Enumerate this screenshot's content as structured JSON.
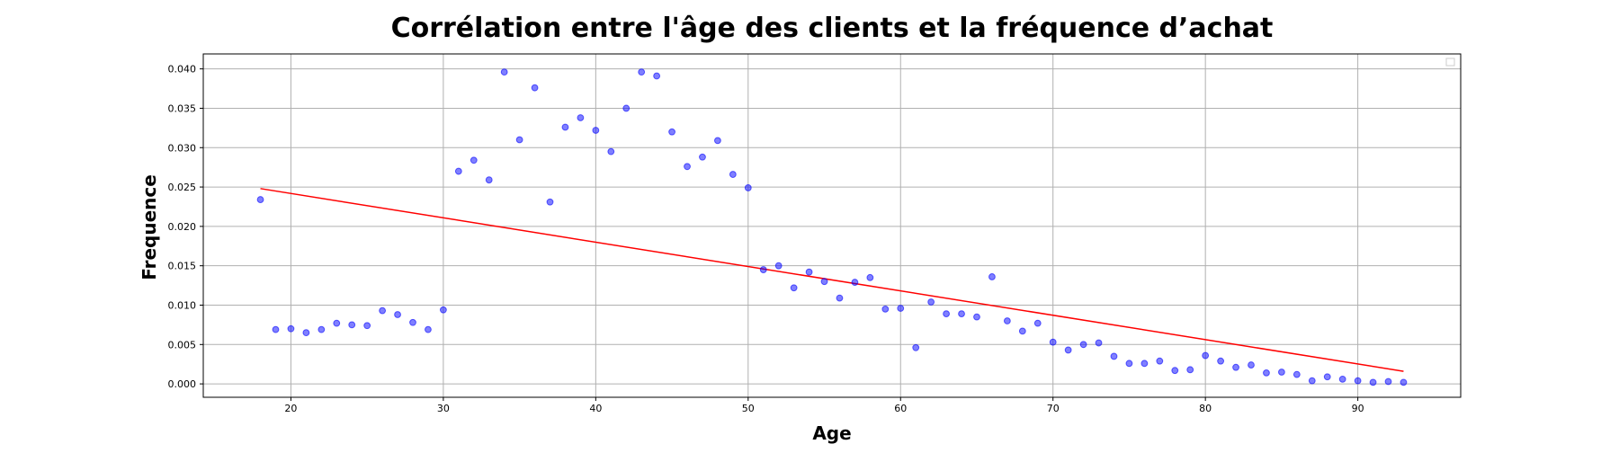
{
  "chart_data": {
    "type": "scatter",
    "title": "Corrélation entre l'âge des clients et la fréquence d’achat",
    "xlabel": "Age",
    "ylabel": "Frequence",
    "xlim": [
      14.25,
      96.75
    ],
    "ylim": [
      -0.0017,
      0.0419
    ],
    "xticks": [
      20,
      30,
      40,
      50,
      60,
      70,
      80,
      90
    ],
    "yticks": [
      0.0,
      0.005,
      0.01,
      0.015,
      0.02,
      0.025,
      0.03,
      0.035,
      0.04
    ],
    "ytick_labels": [
      "0.000",
      "0.005",
      "0.010",
      "0.015",
      "0.020",
      "0.025",
      "0.030",
      "0.035",
      "0.040"
    ],
    "grid": true,
    "legend": "top-right (empty)",
    "point_color": "#0000ff",
    "line_color": "#ff0000",
    "x": [
      18,
      19,
      20,
      21,
      22,
      23,
      24,
      25,
      26,
      27,
      28,
      29,
      30,
      31,
      32,
      33,
      34,
      35,
      36,
      37,
      38,
      39,
      40,
      41,
      42,
      43,
      44,
      45,
      46,
      47,
      48,
      49,
      50,
      51,
      52,
      53,
      54,
      55,
      56,
      57,
      58,
      59,
      60,
      61,
      62,
      63,
      64,
      65,
      66,
      67,
      68,
      69,
      70,
      71,
      72,
      73,
      74,
      75,
      76,
      77,
      78,
      79,
      80,
      81,
      82,
      83,
      84,
      85,
      86,
      87,
      88,
      89,
      90,
      91,
      92,
      93
    ],
    "y": [
      0.0234,
      0.0069,
      0.007,
      0.0065,
      0.0069,
      0.0077,
      0.0075,
      0.0074,
      0.0093,
      0.0088,
      0.0078,
      0.0069,
      0.0094,
      0.027,
      0.0284,
      0.0259,
      0.0396,
      0.031,
      0.0376,
      0.0231,
      0.0326,
      0.0338,
      0.0322,
      0.0295,
      0.035,
      0.0396,
      0.0391,
      0.032,
      0.0276,
      0.0288,
      0.0309,
      0.0266,
      0.0249,
      0.0145,
      0.015,
      0.0122,
      0.0142,
      0.013,
      0.0109,
      0.0129,
      0.0135,
      0.0095,
      0.0096,
      0.0046,
      0.0104,
      0.0089,
      0.0089,
      0.0085,
      0.0136,
      0.008,
      0.0067,
      0.0077,
      0.0053,
      0.0043,
      0.005,
      0.0052,
      0.0035,
      0.0026,
      0.0026,
      0.0029,
      0.0017,
      0.0018,
      0.0036,
      0.0029,
      0.0021,
      0.0024,
      0.0014,
      0.0015,
      0.0012,
      0.0004,
      0.0009,
      0.0006,
      0.0004,
      0.0002,
      0.0003,
      0.0002
    ],
    "regression_line": {
      "x": [
        18,
        93
      ],
      "y": [
        0.0248,
        0.0016
      ]
    }
  }
}
